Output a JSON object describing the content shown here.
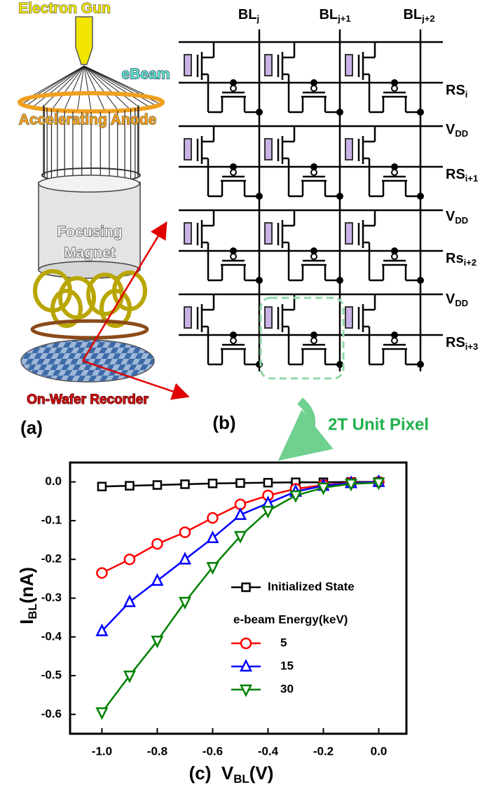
{
  "panel_a": {
    "electron_gun": "Electron Gun",
    "ebeam": "eBeam",
    "anode": "Accelerating Anode",
    "magnet": [
      "Focusing",
      "Magnet"
    ],
    "recorder": "On-Wafer Recorder",
    "label": "(a)"
  },
  "panel_b": {
    "columns": [
      {
        "main": "BL",
        "sub": "j"
      },
      {
        "main": "BL",
        "sub": "j+1"
      },
      {
        "main": "BL",
        "sub": "j+2"
      }
    ],
    "rows": [
      {
        "main": "RS",
        "sub": "i"
      },
      {
        "main": "V",
        "sub": "DD"
      },
      {
        "main": "RS",
        "sub": "i+1"
      },
      {
        "main": "V",
        "sub": "DD"
      },
      {
        "main": "Rs",
        "sub": "i+2"
      },
      {
        "main": "V",
        "sub": "DD"
      },
      {
        "main": "RS",
        "sub": "i+3"
      }
    ],
    "label": "(b)",
    "unit_pixel": "2T Unit Pixel"
  },
  "chart_data": {
    "type": "line",
    "x_label": {
      "prefix": "(c)",
      "main": "V",
      "sub": "BL",
      "unit": "(V)"
    },
    "y_label": {
      "main": "I",
      "sub": "BL",
      "unit": "(nA)"
    },
    "x": [
      -1.0,
      -0.9,
      -0.8,
      -0.7,
      -0.6,
      -0.5,
      -0.4,
      -0.3,
      -0.2,
      -0.1,
      0.0
    ],
    "series": [
      {
        "name": "Initialized State",
        "color": "#000000",
        "marker": "square",
        "values": [
          -0.012,
          -0.01,
          -0.008,
          -0.006,
          -0.004,
          -0.003,
          -0.002,
          -0.001,
          -0.001,
          0.0,
          0.0
        ]
      },
      {
        "name": "5",
        "color": "#ff0000",
        "marker": "circle",
        "values": [
          -0.235,
          -0.2,
          -0.16,
          -0.13,
          -0.093,
          -0.058,
          -0.035,
          -0.018,
          -0.008,
          -0.002,
          0.0
        ]
      },
      {
        "name": "15",
        "color": "#0000ff",
        "marker": "triangle-up",
        "values": [
          -0.385,
          -0.31,
          -0.255,
          -0.2,
          -0.145,
          -0.085,
          -0.055,
          -0.025,
          -0.01,
          -0.003,
          0.0
        ]
      },
      {
        "name": "30",
        "color": "#008000",
        "marker": "triangle-down",
        "values": [
          -0.595,
          -0.5,
          -0.41,
          -0.31,
          -0.22,
          -0.14,
          -0.075,
          -0.035,
          -0.015,
          -0.005,
          -0.002
        ]
      }
    ],
    "legend_title": "e-beam Energy(keV)",
    "xlim": [
      -1.115,
      0.1
    ],
    "ylim": [
      -0.65,
      0.05
    ],
    "xticks": [
      {
        "value": -1.0,
        "label": "-1.0"
      },
      -0.8,
      -0.6,
      -0.4,
      -0.2,
      {
        "value": 0.0,
        "label": "0.0"
      }
    ],
    "yticks": [
      {
        "value": 0.0,
        "label": "0.0"
      },
      -0.1,
      -0.2,
      -0.3,
      -0.4,
      -0.5,
      -0.6
    ]
  }
}
